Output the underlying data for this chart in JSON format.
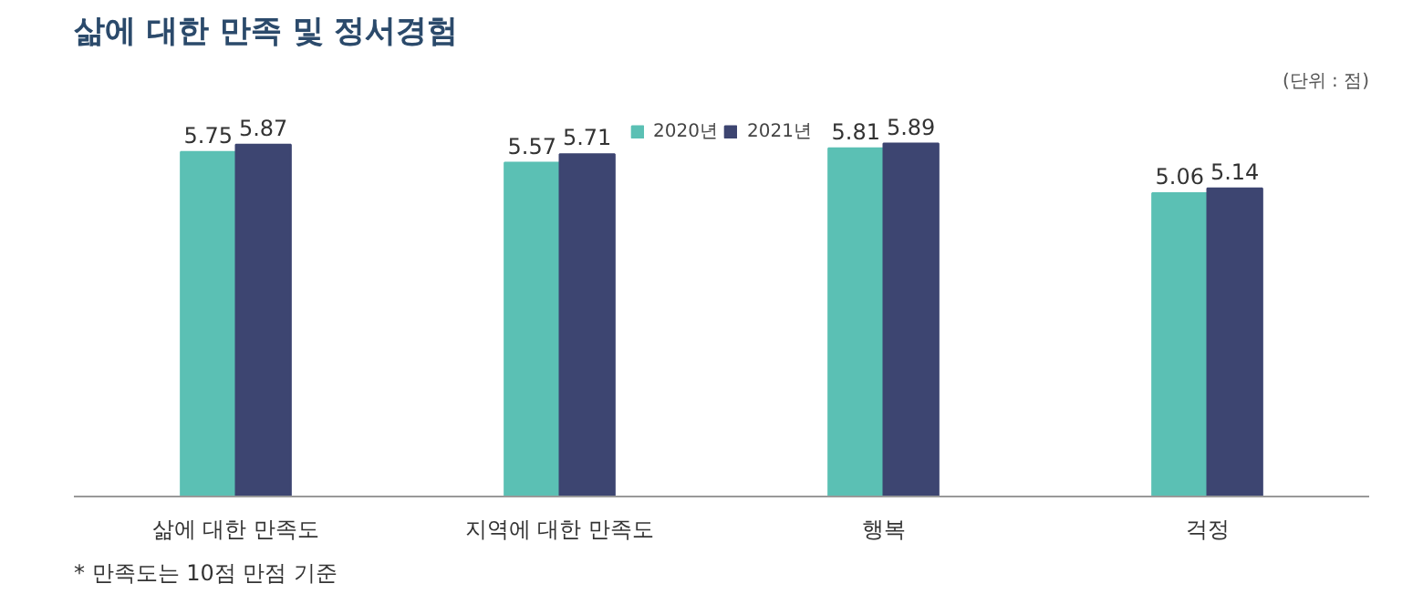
{
  "chart_data": {
    "type": "bar",
    "title": "삶에 대한 만족 및 정서경험",
    "categories": [
      "삶에 대한 만족도",
      "지역에 대한 만족도",
      "행복",
      "걱정"
    ],
    "series": [
      {
        "name": "2020년",
        "color": "#5bc0b4",
        "values": [
          5.75,
          5.57,
          5.81,
          5.06
        ]
      },
      {
        "name": "2021년",
        "color": "#3d4571",
        "values": [
          5.87,
          5.71,
          5.89,
          5.14
        ]
      }
    ],
    "tick_labels": "x",
    "grid": false,
    "legend": "top",
    "data_labels": true,
    "annotations": [
      "(단위 : 점)",
      "* 만족도는 10점 만점 기준"
    ]
  }
}
